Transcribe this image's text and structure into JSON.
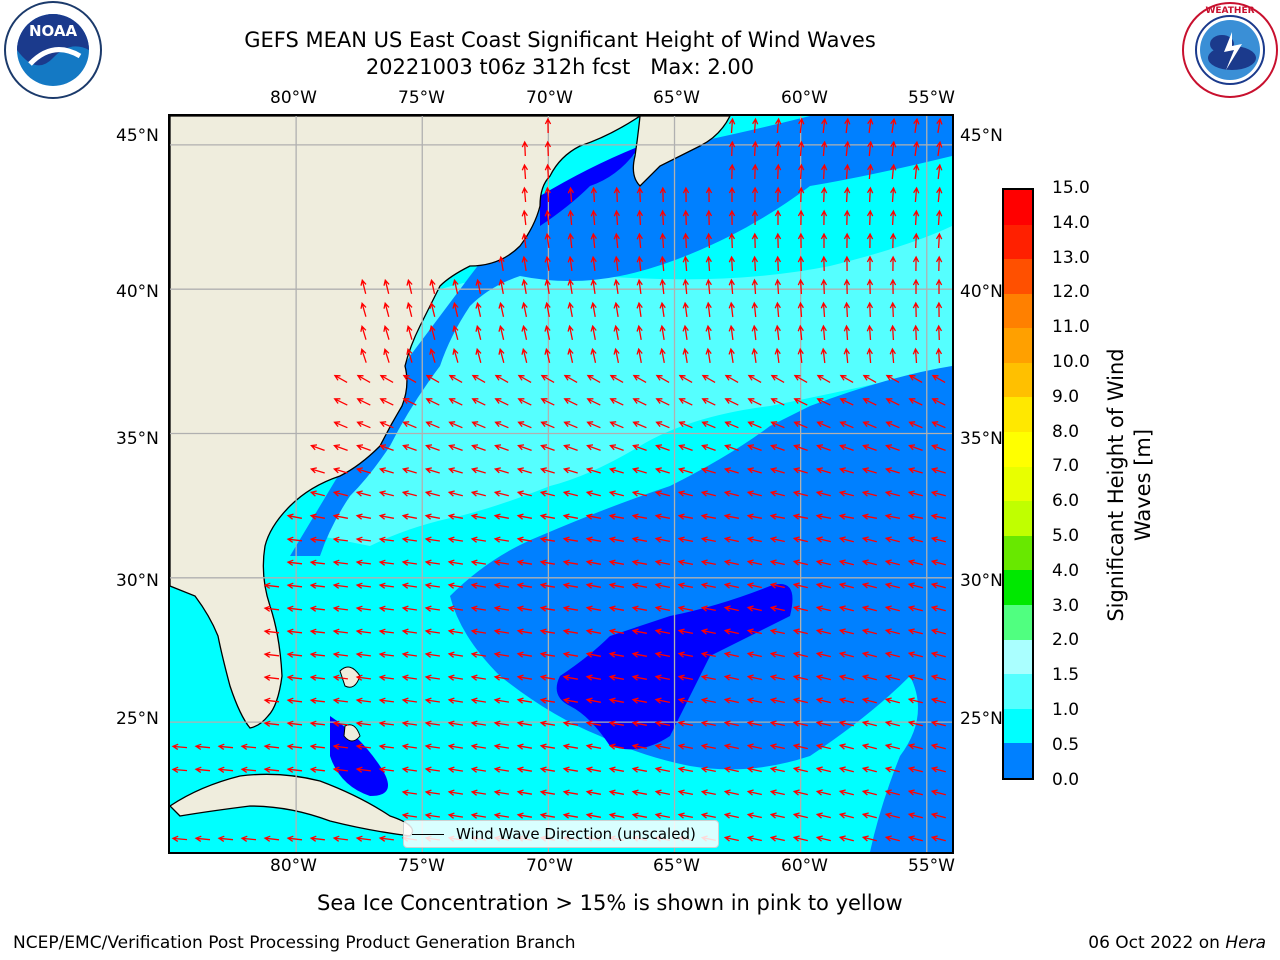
{
  "title": {
    "line1": "GEFS MEAN US East Coast Significant Height of Wind Waves",
    "line2": "20221003 t06z 312h fcst   Max: 2.00"
  },
  "logos": {
    "left": {
      "name": "noaa-logo",
      "text": "NOAA",
      "ring_text": "NATIONAL OCEANIC AND ATMOSPHERIC ADMINISTRATION · U.S. DEPARTMENT OF COMMERCE"
    },
    "right": {
      "name": "nws-logo",
      "ring_text": "NATIONAL WEATHER SERVICE"
    }
  },
  "map": {
    "projection": "lat-lon",
    "lon_range": [
      -85,
      -54
    ],
    "lat_range": [
      20.5,
      46
    ],
    "lon_ticks": [
      "80°W",
      "75°W",
      "70°W",
      "65°W",
      "60°W",
      "55°W"
    ],
    "lat_ticks": [
      "45°N",
      "40°N",
      "35°N",
      "30°N",
      "25°N"
    ],
    "land_color": "#efeddd",
    "grid": true,
    "vector_color": "#ff0000",
    "legend": "Wind Wave Direction (unscaled)"
  },
  "colorbar": {
    "title": "Significant Height of Wind Waves [m]",
    "title_line1": "Significant Height of Wind",
    "title_line2": "Waves [m]",
    "levels": [
      "15.0",
      "14.0",
      "13.0",
      "12.0",
      "11.0",
      "10.0",
      "9.0",
      "8.0",
      "7.0",
      "6.0",
      "5.0",
      "4.0",
      "3.0",
      "2.0",
      "1.5",
      "1.0",
      "0.5",
      "0.0"
    ],
    "colors_top_to_bottom": [
      "#ff0000",
      "#ff2000",
      "#ff5000",
      "#ff8000",
      "#ffa000",
      "#ffc000",
      "#ffe800",
      "#ffff00",
      "#e8ff00",
      "#c0ff00",
      "#68e800",
      "#00e800",
      "#50ff80",
      "#aaffff",
      "#55ffff",
      "#00ffff",
      "#0080ff",
      "#0000ff"
    ]
  },
  "note": "Sea Ice Concentration > 15% is shown in pink to yellow",
  "footer": {
    "left": "NCEP/EMC/Verification Post Processing Product Generation Branch",
    "right_date": "06 Oct 2022 on ",
    "right_host": "Hera"
  }
}
